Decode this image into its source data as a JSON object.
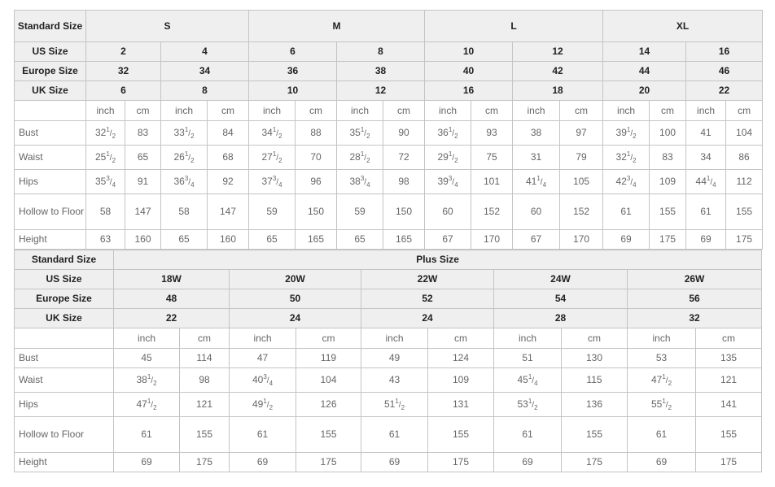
{
  "standard_table": {
    "header_label": "Standard Size",
    "groups": [
      "S",
      "M",
      "L",
      "XL"
    ],
    "us_label": "US Size",
    "us": [
      "2",
      "4",
      "6",
      "8",
      "10",
      "12",
      "14",
      "16"
    ],
    "europe_label": "Europe Size",
    "europe": [
      "32",
      "34",
      "36",
      "38",
      "40",
      "42",
      "44",
      "46"
    ],
    "uk_label": "UK Size",
    "uk": [
      "6",
      "8",
      "10",
      "12",
      "16",
      "18",
      "20",
      "22"
    ],
    "unit_inch": "inch",
    "unit_cm": "cm",
    "rows": [
      {
        "label": "Bust",
        "values": [
          {
            "w": "32",
            "n": "1",
            "d": "2"
          },
          "83",
          {
            "w": "33",
            "n": "1",
            "d": "2"
          },
          "84",
          {
            "w": "34",
            "n": "1",
            "d": "2"
          },
          "88",
          {
            "w": "35",
            "n": "1",
            "d": "2"
          },
          "90",
          {
            "w": "36",
            "n": "1",
            "d": "2"
          },
          "93",
          "38",
          "97",
          {
            "w": "39",
            "n": "1",
            "d": "2"
          },
          "100",
          "41",
          "104"
        ]
      },
      {
        "label": "Waist",
        "values": [
          {
            "w": "25",
            "n": "1",
            "d": "2"
          },
          "65",
          {
            "w": "26",
            "n": "1",
            "d": "2"
          },
          "68",
          {
            "w": "27",
            "n": "1",
            "d": "2"
          },
          "70",
          {
            "w": "28",
            "n": "1",
            "d": "2"
          },
          "72",
          {
            "w": "29",
            "n": "1",
            "d": "2"
          },
          "75",
          "31",
          "79",
          {
            "w": "32",
            "n": "1",
            "d": "2"
          },
          "83",
          "34",
          "86"
        ]
      },
      {
        "label": "Hips",
        "values": [
          {
            "w": "35",
            "n": "3",
            "d": "4"
          },
          "91",
          {
            "w": "36",
            "n": "3",
            "d": "4"
          },
          "92",
          {
            "w": "37",
            "n": "3",
            "d": "4"
          },
          "96",
          {
            "w": "38",
            "n": "3",
            "d": "4"
          },
          "98",
          {
            "w": "39",
            "n": "3",
            "d": "4"
          },
          "101",
          {
            "w": "41",
            "n": "1",
            "d": "4"
          },
          "105",
          {
            "w": "42",
            "n": "3",
            "d": "4"
          },
          "109",
          {
            "w": "44",
            "n": "1",
            "d": "4"
          },
          "112"
        ]
      },
      {
        "label": "Hollow to Floor",
        "values": [
          "58",
          "147",
          "58",
          "147",
          "59",
          "150",
          "59",
          "150",
          "60",
          "152",
          "60",
          "152",
          "61",
          "155",
          "61",
          "155"
        ]
      },
      {
        "label": "Height",
        "values": [
          "63",
          "160",
          "65",
          "160",
          "65",
          "165",
          "65",
          "165",
          "67",
          "170",
          "67",
          "170",
          "69",
          "175",
          "69",
          "175"
        ]
      }
    ]
  },
  "plus_table": {
    "header_label": "Standard Size",
    "group": "Plus Size",
    "us_label": "US Size",
    "us": [
      "18W",
      "20W",
      "22W",
      "24W",
      "26W"
    ],
    "europe_label": "Europe Size",
    "europe": [
      "48",
      "50",
      "52",
      "54",
      "56"
    ],
    "uk_label": "UK Size",
    "uk": [
      "22",
      "24",
      "24",
      "28",
      "32"
    ],
    "unit_inch": "inch",
    "unit_cm": "cm",
    "rows": [
      {
        "label": "Bust",
        "values": [
          "45",
          "114",
          "47",
          "119",
          "49",
          "124",
          "51",
          "130",
          "53",
          "135"
        ]
      },
      {
        "label": "Waist",
        "values": [
          {
            "w": "38",
            "n": "1",
            "d": "2"
          },
          "98",
          {
            "w": "40",
            "n": "3",
            "d": "4"
          },
          "104",
          "43",
          "109",
          {
            "w": "45",
            "n": "1",
            "d": "4"
          },
          "115",
          {
            "w": "47",
            "n": "1",
            "d": "2"
          },
          "121"
        ]
      },
      {
        "label": "Hips",
        "values": [
          {
            "w": "47",
            "n": "1",
            "d": "2"
          },
          "121",
          {
            "w": "49",
            "n": "1",
            "d": "2"
          },
          "126",
          {
            "w": "51",
            "n": "1",
            "d": "2"
          },
          "131",
          {
            "w": "53",
            "n": "1",
            "d": "2"
          },
          "136",
          {
            "w": "55",
            "n": "1",
            "d": "2"
          },
          "141"
        ]
      },
      {
        "label": "Hollow to Floor",
        "values": [
          "61",
          "155",
          "61",
          "155",
          "61",
          "155",
          "61",
          "155",
          "61",
          "155"
        ]
      },
      {
        "label": "Height",
        "values": [
          "69",
          "175",
          "69",
          "175",
          "69",
          "175",
          "69",
          "175",
          "69",
          "175"
        ]
      }
    ]
  }
}
